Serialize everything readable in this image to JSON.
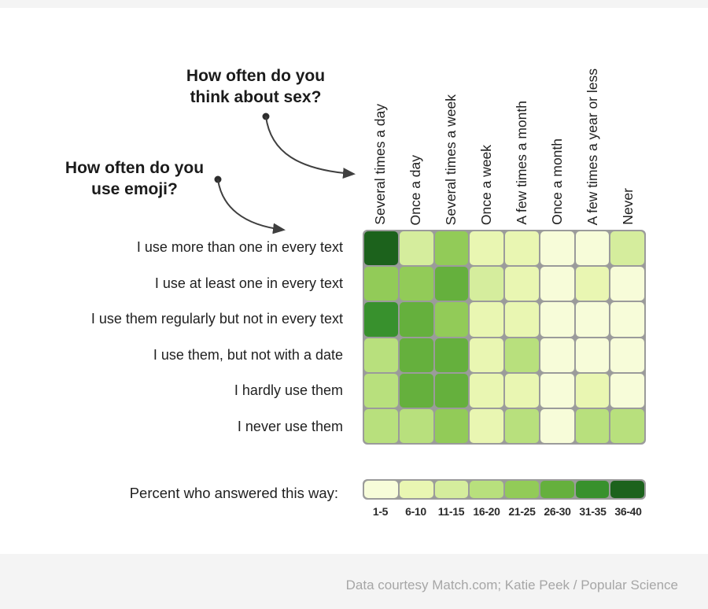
{
  "page": {
    "top_strip_color": "#f4f4f4",
    "footer": {
      "text": "Data courtesy Match.com; Katie Peek / Popular Science",
      "background": "#f4f4f4",
      "text_color": "#a6a6a6"
    }
  },
  "annotations": {
    "sex_question_line1": "How often do you",
    "sex_question_line2": "think about sex?",
    "emoji_question_line1": "How often do you",
    "emoji_question_line2": "use emoji?"
  },
  "chart_data": {
    "type": "heatmap",
    "x_question": "How often do you think about sex?",
    "y_question": "How often do you use emoji?",
    "columns": [
      "Several times a day",
      "Once a day",
      "Several times a week",
      "Once a week",
      "A few times a month",
      "Once a month",
      "A few times a year or less",
      "Never"
    ],
    "rows": [
      "I use more than one in every text",
      "I use at least one in every text",
      "I use them regularly but not in every text",
      "I use them, but not with a date",
      "I hardly use them",
      "I never use them"
    ],
    "legend": {
      "title": "Percent who answered this way:",
      "bins": [
        "1-5",
        "6-10",
        "11-15",
        "16-20",
        "21-25",
        "26-30",
        "31-35",
        "36-40"
      ],
      "colors": [
        "#f7fcd9",
        "#e9f6b2",
        "#d5ed9d",
        "#b8e07d",
        "#92cb58",
        "#65b03d",
        "#38912d",
        "#1c621c"
      ]
    },
    "cells": [
      [
        "36-40",
        "11-15",
        "21-25",
        "6-10",
        "6-10",
        "1-5",
        "1-5",
        "11-15"
      ],
      [
        "21-25",
        "21-25",
        "26-30",
        "11-15",
        "6-10",
        "1-5",
        "6-10",
        "1-5"
      ],
      [
        "31-35",
        "26-30",
        "21-25",
        "6-10",
        "6-10",
        "1-5",
        "1-5",
        "1-5"
      ],
      [
        "16-20",
        "26-30",
        "26-30",
        "6-10",
        "16-20",
        "1-5",
        "1-5",
        "1-5"
      ],
      [
        "16-20",
        "26-30",
        "26-30",
        "6-10",
        "6-10",
        "1-5",
        "6-10",
        "1-5"
      ],
      [
        "16-20",
        "16-20",
        "21-25",
        "6-10",
        "16-20",
        "1-5",
        "16-20",
        "16-20"
      ]
    ],
    "grid_line_color": "#9b9b9b",
    "arrow_color": "#3f3f3f"
  }
}
